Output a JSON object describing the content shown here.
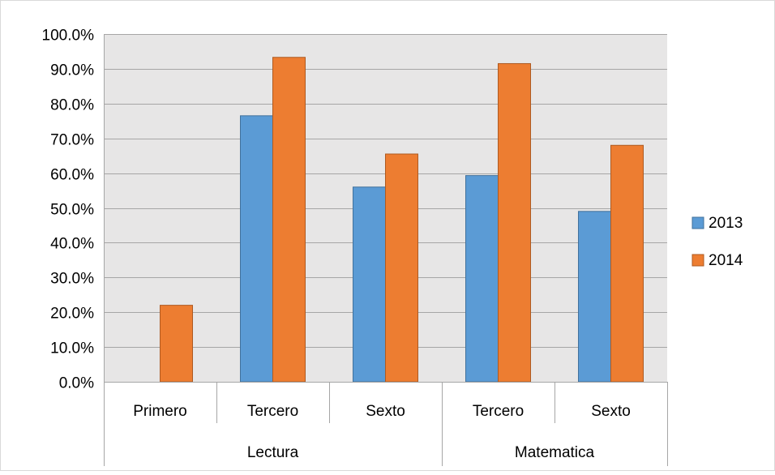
{
  "chart_data": {
    "type": "bar",
    "title": "",
    "xlabel": "",
    "ylabel": "",
    "ylim": [
      0,
      100
    ],
    "y_tick_labels": [
      "0.0%",
      "10.0%",
      "20.0%",
      "30.0%",
      "40.0%",
      "50.0%",
      "60.0%",
      "70.0%",
      "80.0%",
      "90.0%",
      "100.0%"
    ],
    "groups": [
      {
        "label": "Lectura",
        "span": 3
      },
      {
        "label": "Matematica",
        "span": 2
      }
    ],
    "categories": [
      "Primero",
      "Tercero",
      "Sexto",
      "Tercero",
      "Sexto"
    ],
    "series": [
      {
        "name": "2013",
        "color": "#5b9bd5",
        "values": [
          null,
          76.5,
          56.0,
          59.3,
          49.0
        ]
      },
      {
        "name": "2014",
        "color": "#ed7d31",
        "values": [
          22.0,
          93.3,
          65.5,
          91.5,
          68.0
        ]
      }
    ],
    "grid": true,
    "plot_background": "#e7e6e6",
    "legend_position": "right"
  }
}
